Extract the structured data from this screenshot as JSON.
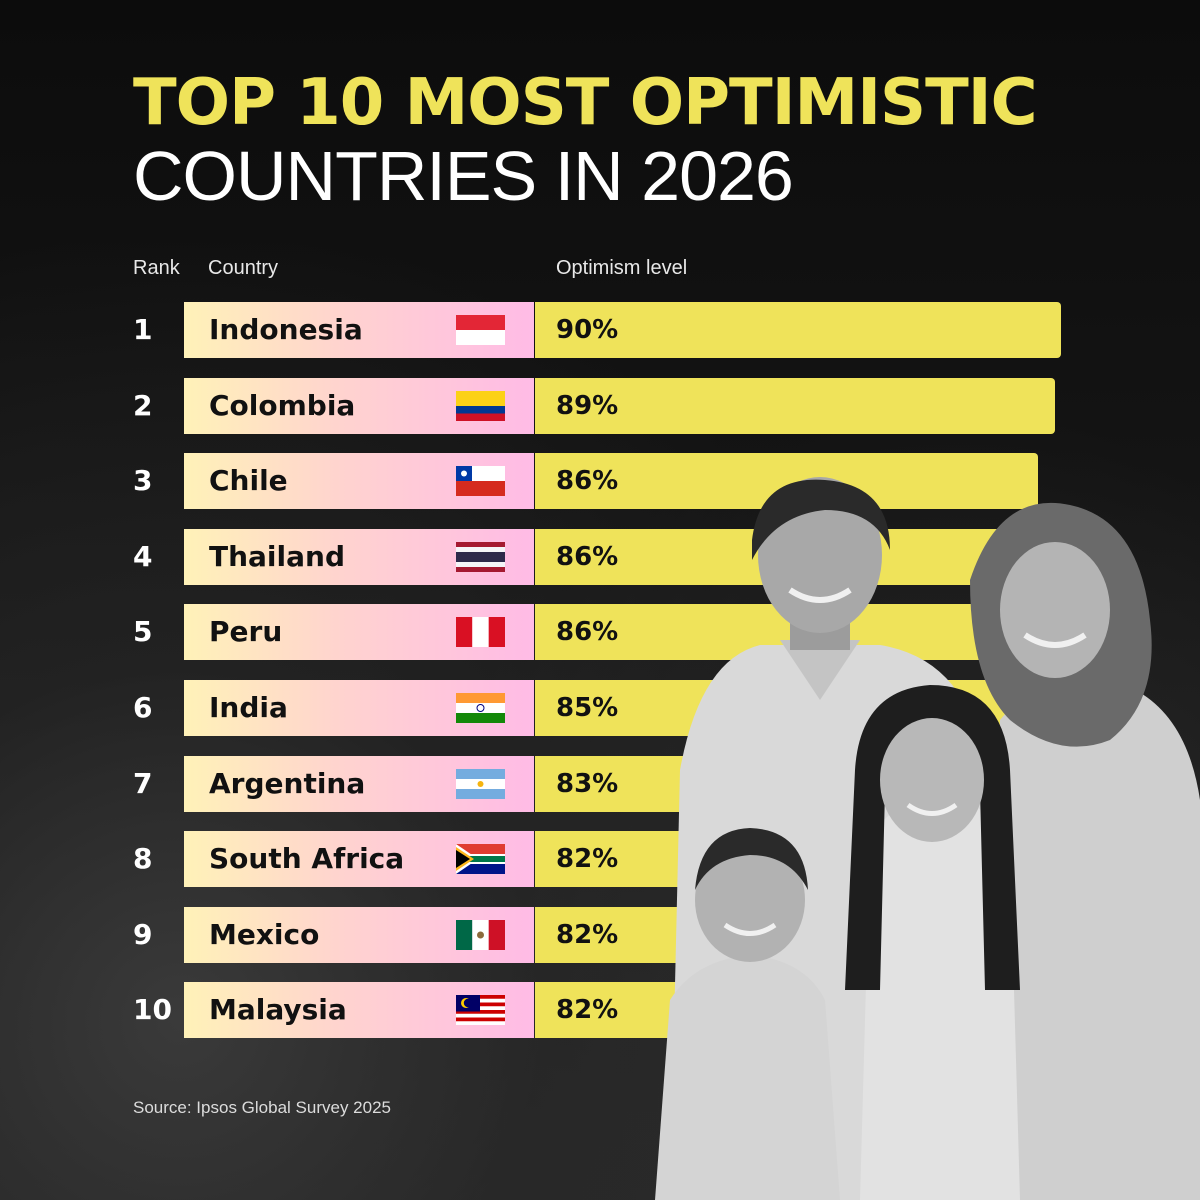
{
  "title_line1": "TOP 10 MOST OPTIMISTIC",
  "title_line2": "COUNTRIES IN 2026",
  "headers": {
    "rank": "Rank",
    "country": "Country",
    "optimism": "Optimism level"
  },
  "source": "Source: Ipsos Global Survey 2025",
  "colors": {
    "accent": "#efe35a",
    "name_gradient_start": "#fff2b8",
    "name_gradient_end": "#ffbbe6"
  },
  "chart_data": {
    "type": "bar",
    "categories": [
      "Indonesia",
      "Colombia",
      "Chile",
      "Thailand",
      "Peru",
      "India",
      "Argentina",
      "South Africa",
      "Mexico",
      "Malaysia"
    ],
    "ranks": [
      "1",
      "2",
      "3",
      "4",
      "5",
      "6",
      "7",
      "8",
      "9",
      "10"
    ],
    "values": [
      90,
      89,
      86,
      86,
      86,
      85,
      83,
      82,
      82,
      82
    ],
    "labels": [
      "90%",
      "89%",
      "86%",
      "86%",
      "86%",
      "85%",
      "83%",
      "82%",
      "82%",
      "82%"
    ],
    "flags": [
      "indonesia-flag-icon",
      "colombia-flag-icon",
      "chile-flag-icon",
      "thailand-flag-icon",
      "peru-flag-icon",
      "india-flag-icon",
      "argentina-flag-icon",
      "south-africa-flag-icon",
      "mexico-flag-icon",
      "malaysia-flag-icon"
    ],
    "orientation": "horizontal",
    "xlim": [
      0,
      100
    ]
  }
}
